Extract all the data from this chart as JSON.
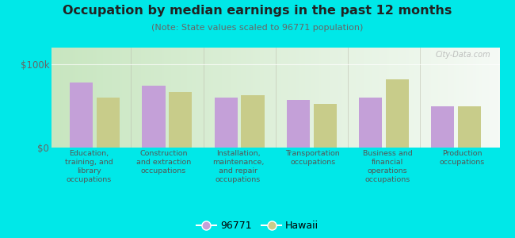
{
  "title": "Occupation by median earnings in the past 12 months",
  "subtitle": "(Note: State values scaled to 96771 population)",
  "categories": [
    "Education,\ntraining, and\nlibrary\noccupations",
    "Construction\nand extraction\noccupations",
    "Installation,\nmaintenance,\nand repair\noccupations",
    "Transportation\noccupations",
    "Business and\nfinancial\noperations\noccupations",
    "Production\noccupations"
  ],
  "values_96771": [
    78000,
    74000,
    60000,
    57000,
    60000,
    50000
  ],
  "values_hawaii": [
    60000,
    67000,
    63000,
    52000,
    82000,
    50000
  ],
  "color_96771": "#c4a0d8",
  "color_hawaii": "#c8cc8a",
  "ylim": [
    0,
    120000
  ],
  "ytick_labels": [
    "$0",
    "$100k"
  ],
  "ytick_vals": [
    0,
    100000
  ],
  "background_color": "#00e8e8",
  "plot_bg_left": "#e8f5e0",
  "plot_bg_right": "#f5faf0",
  "legend_label_96771": "96771",
  "legend_label_hawaii": "Hawaii",
  "watermark": "City-Data.com"
}
